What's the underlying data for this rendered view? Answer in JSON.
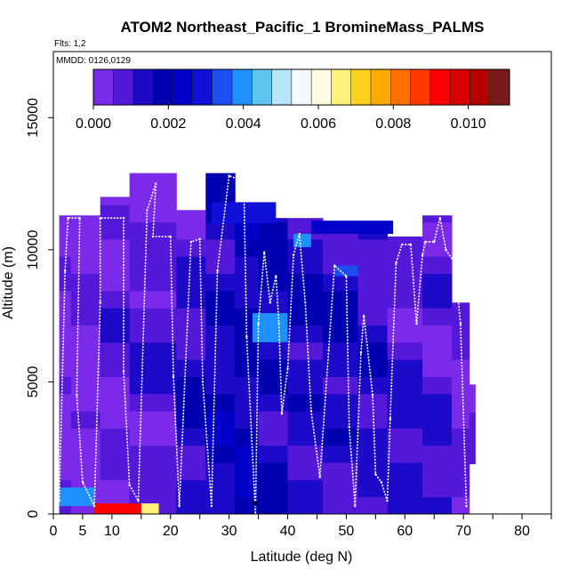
{
  "chart_data": {
    "type": "heatmap",
    "title": "ATOM2 Northeast_Pacific_1 BromineMass_PALMS",
    "flights_note": "Flts: 1,2",
    "date_note": "MMDD: 0126,0129",
    "xlabel": "Latitude (deg N)",
    "ylabel": "Altitude (m)",
    "xlim": [
      0,
      85
    ],
    "ylim": [
      0,
      17500
    ],
    "x_ticks": [
      0,
      5,
      10,
      20,
      30,
      40,
      50,
      60,
      70,
      80
    ],
    "x_tick_labels": [
      "0",
      "5",
      "10",
      "20",
      "30",
      "40",
      "50",
      "60",
      "70",
      "80"
    ],
    "x_minor_ticks": [
      0,
      5,
      10,
      15,
      20,
      25,
      30,
      35,
      40,
      45,
      50,
      55,
      60,
      65,
      70,
      75,
      80,
      85
    ],
    "y_ticks": [
      0,
      5000,
      10000,
      15000
    ],
    "y_tick_labels": [
      "0",
      "5000",
      "10000",
      "15000"
    ],
    "colorbar": {
      "min": 0,
      "max": 0.0111,
      "tick_values": [
        0,
        0.002,
        0.004,
        0.006,
        0.008,
        0.01
      ],
      "tick_labels": [
        "0.000",
        "0.002",
        "0.004",
        "0.006",
        "0.008",
        "0.010"
      ],
      "colors": [
        "#7a2ae8",
        "#5418d8",
        "#1c0ac8",
        "#0000b0",
        "#0000c8",
        "#1010d8",
        "#1e4ef0",
        "#1e90ff",
        "#5ec4f4",
        "#b8e4f8",
        "#f4f8ff",
        "#fffce0",
        "#fff27a",
        "#ffd21e",
        "#ffaa00",
        "#ff7000",
        "#ff3800",
        "#ff0000",
        "#d80000",
        "#b00000",
        "#7a1a1a"
      ]
    },
    "profile_bands": [
      {
        "lat": [
          1,
          3
        ],
        "alt": [
          0,
          11300
        ],
        "level": 0.0003
      },
      {
        "lat": [
          3,
          8
        ],
        "alt": [
          0,
          11300
        ],
        "level": 0.0004
      },
      {
        "lat": [
          8,
          13
        ],
        "alt": [
          0,
          12000
        ],
        "level": 0.0006
      },
      {
        "lat": [
          13,
          21
        ],
        "alt": [
          0,
          12900
        ],
        "level": 0.0008
      },
      {
        "lat": [
          21,
          26
        ],
        "alt": [
          0,
          11500
        ],
        "level": 0.0012
      },
      {
        "lat": [
          26,
          31
        ],
        "alt": [
          0,
          12900
        ],
        "level": 0.0016
      },
      {
        "lat": [
          31,
          35
        ],
        "alt": [
          0,
          11700
        ],
        "level": 0.0018
      },
      {
        "lat": [
          35,
          40
        ],
        "alt": [
          0,
          11200
        ],
        "level": 0.0015
      },
      {
        "lat": [
          40,
          46
        ],
        "alt": [
          0,
          11200
        ],
        "level": 0.0014
      },
      {
        "lat": [
          46,
          52
        ],
        "alt": [
          0,
          11000
        ],
        "level": 0.0013
      },
      {
        "lat": [
          52,
          57
        ],
        "alt": [
          0,
          10700
        ],
        "level": 0.0011
      },
      {
        "lat": [
          57,
          63
        ],
        "alt": [
          0,
          10500
        ],
        "level": 0.001
      },
      {
        "lat": [
          63,
          68
        ],
        "alt": [
          0,
          11300
        ],
        "level": 0.0009
      },
      {
        "lat": [
          68,
          71
        ],
        "alt": [
          0,
          8000
        ],
        "level": 0.0006
      },
      {
        "lat": [
          71,
          72
        ],
        "alt": [
          1900,
          4900
        ],
        "level": 0.0004
      }
    ],
    "highlights": [
      {
        "lat": [
          1,
          7
        ],
        "alt": [
          300,
          1000
        ],
        "level": 0.0038
      },
      {
        "lat": [
          7,
          15
        ],
        "alt": [
          0,
          400
        ],
        "level": 0.0095
      },
      {
        "lat": [
          15,
          18
        ],
        "alt": [
          0,
          400
        ],
        "level": 0.0065
      },
      {
        "lat": [
          34,
          40
        ],
        "alt": [
          6500,
          7600
        ],
        "level": 0.0037
      },
      {
        "lat": [
          41,
          44
        ],
        "alt": [
          10100,
          10600
        ],
        "level": 0.0038
      },
      {
        "lat": [
          48,
          52
        ],
        "alt": [
          9000,
          9400
        ],
        "level": 0.0032
      },
      {
        "lat": [
          27,
          38
        ],
        "alt": [
          11000,
          11800
        ],
        "level": 0.0028
      },
      {
        "lat": [
          44,
          58
        ],
        "alt": [
          10600,
          11100
        ],
        "level": 0.0025
      }
    ],
    "flight_track": [
      [
        1,
        500
      ],
      [
        2,
        9200
      ],
      [
        2.5,
        11200
      ],
      [
        4.5,
        11200
      ],
      [
        4,
        4500
      ],
      [
        5,
        1200
      ],
      [
        7,
        300
      ],
      [
        8,
        8000
      ],
      [
        8,
        11200
      ],
      [
        12,
        11200
      ],
      [
        12,
        5400
      ],
      [
        13,
        1100
      ],
      [
        14.5,
        500
      ],
      [
        16,
        11500
      ],
      [
        17.5,
        12500
      ],
      [
        17,
        10500
      ],
      [
        20,
        10500
      ],
      [
        20.5,
        5200
      ],
      [
        21.5,
        300
      ],
      [
        23.5,
        10300
      ],
      [
        25,
        10400
      ],
      [
        25.5,
        5000
      ],
      [
        27,
        300
      ],
      [
        28,
        9200
      ],
      [
        30,
        12800
      ],
      [
        32.5,
        12600
      ],
      [
        33,
        6700
      ],
      [
        34.5,
        0
      ],
      [
        35,
        7200
      ],
      [
        36,
        9900
      ],
      [
        37,
        8000
      ],
      [
        38,
        9000
      ],
      [
        38.5,
        7200
      ],
      [
        39,
        3800
      ],
      [
        40,
        5500
      ],
      [
        41,
        9800
      ],
      [
        42,
        10600
      ],
      [
        43,
        8000
      ],
      [
        44,
        3900
      ],
      [
        45.5,
        1400
      ],
      [
        47,
        6200
      ],
      [
        48,
        9400
      ],
      [
        50,
        9000
      ],
      [
        50.5,
        3300
      ],
      [
        51.5,
        300
      ],
      [
        52.5,
        6100
      ],
      [
        53,
        7500
      ],
      [
        54.5,
        4500
      ],
      [
        55,
        1500
      ],
      [
        56,
        1200
      ],
      [
        57,
        500
      ],
      [
        57.5,
        3600
      ],
      [
        58.5,
        9500
      ],
      [
        59.5,
        10200
      ],
      [
        61,
        10200
      ],
      [
        62,
        7200
      ],
      [
        63,
        9800
      ],
      [
        63.5,
        10300
      ],
      [
        65,
        10300
      ],
      [
        66,
        11200
      ],
      [
        67,
        10000
      ],
      [
        68.5,
        9500
      ],
      [
        69.5,
        7200
      ],
      [
        70.5,
        300
      ]
    ],
    "marker": {
      "lat": 34.5,
      "alt": 300
    }
  }
}
